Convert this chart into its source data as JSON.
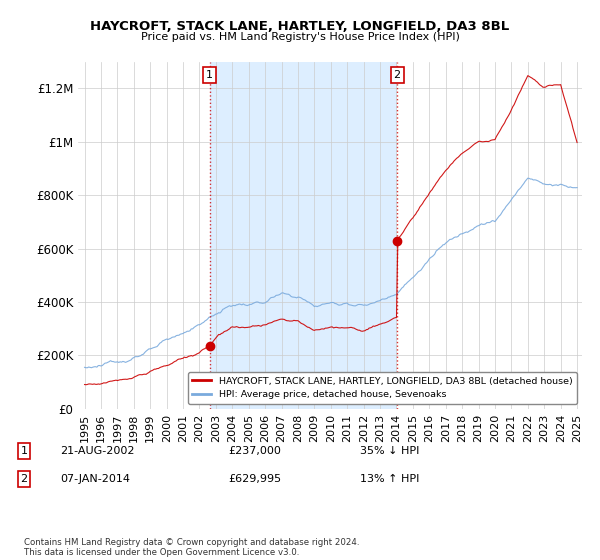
{
  "title": "HAYCROFT, STACK LANE, HARTLEY, LONGFIELD, DA3 8BL",
  "subtitle": "Price paid vs. HM Land Registry's House Price Index (HPI)",
  "red_label": "HAYCROFT, STACK LANE, HARTLEY, LONGFIELD, DA3 8BL (detached house)",
  "blue_label": "HPI: Average price, detached house, Sevenoaks",
  "annotation1_date": "21-AUG-2002",
  "annotation1_price": "£237,000",
  "annotation1_hpi": "35% ↓ HPI",
  "annotation2_date": "07-JAN-2014",
  "annotation2_price": "£629,995",
  "annotation2_hpi": "13% ↑ HPI",
  "footer": "Contains HM Land Registry data © Crown copyright and database right 2024.\nThis data is licensed under the Open Government Licence v3.0.",
  "ylim_min": 0,
  "ylim_max": 1300000,
  "background_color": "#ffffff",
  "grid_color": "#cccccc",
  "red_color": "#cc0000",
  "blue_color": "#7aaadd",
  "shade_color": "#ddeeff",
  "sale1_year": 2002.622,
  "sale1_price": 237000,
  "sale2_year": 2014.042,
  "sale2_price": 629995
}
